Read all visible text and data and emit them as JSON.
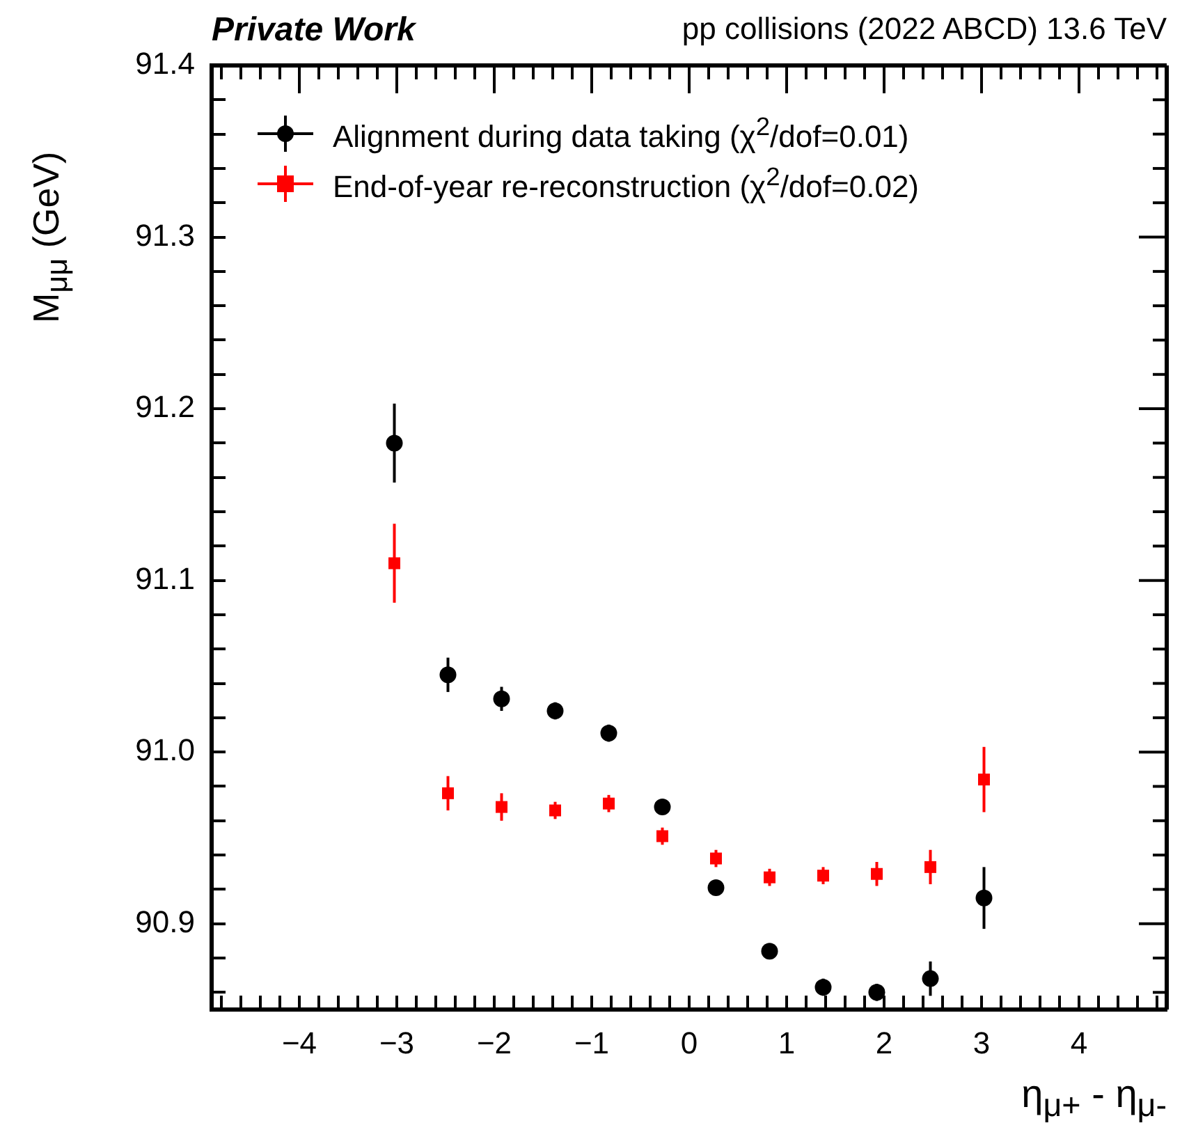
{
  "chart_data": {
    "type": "scatter",
    "title": "Private Work",
    "subtitle": "pp collisions (2022 ABCD) 13.6 TeV",
    "xlabel": "η$_{μ+}$ - η$_{μ-}$",
    "ylabel": "M$_{μμ}$ (GeV)",
    "x": [
      -3.025,
      -2.475,
      -1.925,
      -1.375,
      -0.825,
      -0.275,
      0.275,
      0.825,
      1.375,
      1.925,
      2.475,
      3.025
    ],
    "series": [
      {
        "name": "Alignment during data taking (χ$^{2}$/dof=0.01)",
        "color": "#000000",
        "marker": "circle",
        "values": [
          91.18,
          91.045,
          91.031,
          91.024,
          91.011,
          90.968,
          90.921,
          90.884,
          90.863,
          90.86,
          90.868,
          90.915
        ],
        "errors": [
          0.023,
          0.01,
          0.007,
          0.005,
          0.005,
          0.003,
          0.003,
          0.003,
          0.005,
          0.005,
          0.01,
          0.018
        ]
      },
      {
        "name": "End-of-year re-reconstruction (χ$^{2}$/dof=0.02)",
        "color": "#ff0000",
        "marker": "square",
        "values": [
          91.11,
          90.976,
          90.968,
          90.966,
          90.97,
          90.951,
          90.938,
          90.927,
          90.928,
          90.929,
          90.933,
          90.984
        ],
        "errors": [
          0.023,
          0.01,
          0.008,
          0.005,
          0.005,
          0.005,
          0.005,
          0.005,
          0.005,
          0.007,
          0.01,
          0.019
        ]
      }
    ],
    "xlim": [
      -4.9,
      4.9
    ],
    "xticks": [
      {
        "value": -4.8,
        "label": null
      },
      {
        "value": -4.6,
        "label": null
      },
      {
        "value": -4.4,
        "label": null
      },
      {
        "value": -4.2,
        "label": null
      },
      {
        "value": -4,
        "label": "−4"
      },
      {
        "value": -3.8,
        "label": null
      },
      {
        "value": -3.6,
        "label": null
      },
      {
        "value": -3.4,
        "label": null
      },
      {
        "value": -3.2,
        "label": null
      },
      {
        "value": -3,
        "label": "−3"
      },
      {
        "value": -2.8,
        "label": null
      },
      {
        "value": -2.6,
        "label": null
      },
      {
        "value": -2.4,
        "label": null
      },
      {
        "value": -2.2,
        "label": null
      },
      {
        "value": -2,
        "label": "−2"
      },
      {
        "value": -1.8,
        "label": null
      },
      {
        "value": -1.6,
        "label": null
      },
      {
        "value": -1.4,
        "label": null
      },
      {
        "value": -1.2,
        "label": null
      },
      {
        "value": -1,
        "label": "−1"
      },
      {
        "value": -0.8,
        "label": null
      },
      {
        "value": -0.6,
        "label": null
      },
      {
        "value": -0.4,
        "label": null
      },
      {
        "value": -0.2,
        "label": null
      },
      0,
      {
        "value": 0.2,
        "label": null
      },
      {
        "value": 0.4,
        "label": null
      },
      {
        "value": 0.6,
        "label": null
      },
      {
        "value": 0.8,
        "label": null
      },
      1,
      {
        "value": 1.2,
        "label": null
      },
      {
        "value": 1.4,
        "label": null
      },
      {
        "value": 1.6,
        "label": null
      },
      {
        "value": 1.8,
        "label": null
      },
      2,
      {
        "value": 2.2,
        "label": null
      },
      {
        "value": 2.4,
        "label": null
      },
      {
        "value": 2.6,
        "label": null
      },
      {
        "value": 2.8,
        "label": null
      },
      3,
      {
        "value": 3.2,
        "label": null
      },
      {
        "value": 3.4,
        "label": null
      },
      {
        "value": 3.6,
        "label": null
      },
      {
        "value": 3.8,
        "label": null
      },
      4,
      {
        "value": 4.2,
        "label": null
      },
      {
        "value": 4.4,
        "label": null
      },
      {
        "value": 4.6,
        "label": null
      },
      {
        "value": 4.8,
        "label": null
      }
    ],
    "ylim": [
      90.85,
      91.4
    ],
    "yticks": [
      {
        "value": 90.86,
        "label": null
      },
      {
        "value": 90.88,
        "label": null
      },
      90.9,
      {
        "value": 90.92,
        "label": null
      },
      {
        "value": 90.94,
        "label": null
      },
      {
        "value": 90.96,
        "label": null
      },
      {
        "value": 90.98,
        "label": null
      },
      {
        "value": 91,
        "label": "91.0"
      },
      {
        "value": 91.02,
        "label": null
      },
      {
        "value": 91.04,
        "label": null
      },
      {
        "value": 91.06,
        "label": null
      },
      {
        "value": 91.08,
        "label": null
      },
      91.1,
      {
        "value": 91.12,
        "label": null
      },
      {
        "value": 91.14,
        "label": null
      },
      {
        "value": 91.16,
        "label": null
      },
      {
        "value": 91.18,
        "label": null
      },
      91.2,
      {
        "value": 91.22,
        "label": null
      },
      {
        "value": 91.24,
        "label": null
      },
      {
        "value": 91.26,
        "label": null
      },
      {
        "value": 91.28,
        "label": null
      },
      91.3,
      {
        "value": 91.32,
        "label": null
      },
      {
        "value": 91.34,
        "label": null
      },
      {
        "value": 91.36,
        "label": null
      },
      {
        "value": 91.38,
        "label": null
      },
      91.4
    ],
    "legend": "top"
  }
}
